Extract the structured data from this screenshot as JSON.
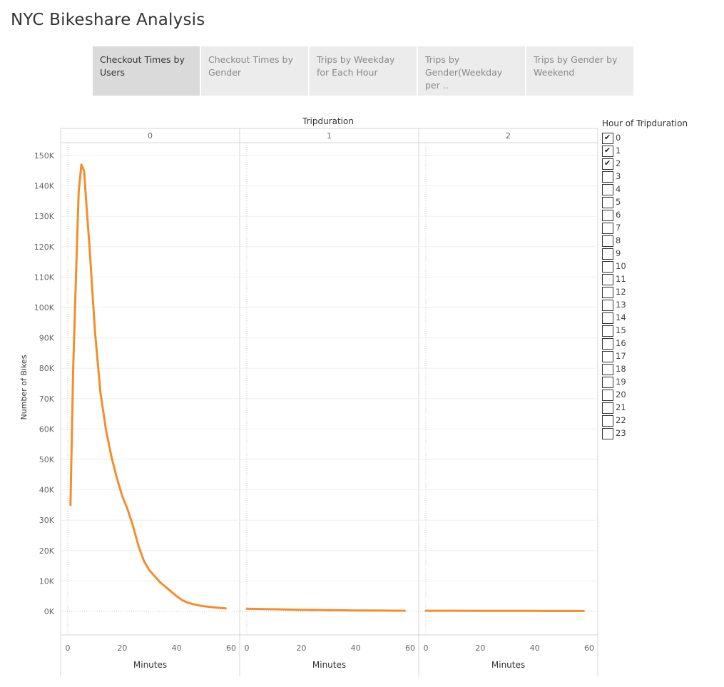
{
  "page": {
    "title": "NYC Bikeshare Analysis"
  },
  "tabs": [
    {
      "label": "Checkout Times by Users",
      "active": true
    },
    {
      "label": "Checkout Times by Gender",
      "active": false
    },
    {
      "label": "Trips by Weekday for Each Hour",
      "active": false
    },
    {
      "label": "Trips by Gender(Weekday per ..",
      "active": false
    },
    {
      "label": "Trips by Gender by Weekend",
      "active": false
    }
  ],
  "legend": {
    "title": "Hour of Tripduration",
    "items": [
      {
        "label": "0",
        "checked": true
      },
      {
        "label": "1",
        "checked": true
      },
      {
        "label": "2",
        "checked": true
      },
      {
        "label": "3",
        "checked": false
      },
      {
        "label": "4",
        "checked": false
      },
      {
        "label": "5",
        "checked": false
      },
      {
        "label": "6",
        "checked": false
      },
      {
        "label": "7",
        "checked": false
      },
      {
        "label": "8",
        "checked": false
      },
      {
        "label": "9",
        "checked": false
      },
      {
        "label": "10",
        "checked": false
      },
      {
        "label": "11",
        "checked": false
      },
      {
        "label": "12",
        "checked": false
      },
      {
        "label": "13",
        "checked": false
      },
      {
        "label": "14",
        "checked": false
      },
      {
        "label": "15",
        "checked": false
      },
      {
        "label": "16",
        "checked": false
      },
      {
        "label": "17",
        "checked": false
      },
      {
        "label": "18",
        "checked": false
      },
      {
        "label": "19",
        "checked": false
      },
      {
        "label": "20",
        "checked": false
      },
      {
        "label": "21",
        "checked": false
      },
      {
        "label": "22",
        "checked": false
      },
      {
        "label": "23",
        "checked": false
      }
    ]
  },
  "chart_data": {
    "type": "line",
    "title": "Tripduration",
    "xlabel": "Minutes",
    "ylabel": "Number of Bikes",
    "ylim": [
      0,
      150000
    ],
    "xlim": [
      0,
      60
    ],
    "x_ticks": [
      "0",
      "20",
      "40",
      "60"
    ],
    "y_ticks": [
      "0K",
      "10K",
      "20K",
      "30K",
      "40K",
      "50K",
      "60K",
      "70K",
      "80K",
      "90K",
      "100K",
      "110K",
      "120K",
      "130K",
      "140K",
      "150K"
    ],
    "grid": true,
    "line_color": "#f28e2b",
    "panels": [
      {
        "label": "0",
        "x": [
          1,
          2,
          3,
          4,
          5,
          6,
          7,
          8,
          9,
          10,
          12,
          14,
          16,
          18,
          20,
          22,
          24,
          26,
          28,
          30,
          32,
          34,
          36,
          38,
          40,
          42,
          44,
          46,
          48,
          50,
          52,
          54,
          56,
          58
        ],
        "values": [
          35000,
          80000,
          110000,
          138000,
          147000,
          145000,
          132000,
          120000,
          106000,
          92000,
          72000,
          60000,
          51000,
          44000,
          38000,
          33500,
          28000,
          21500,
          16500,
          13500,
          11500,
          9500,
          8000,
          6500,
          5000,
          3700,
          2900,
          2400,
          2000,
          1700,
          1500,
          1300,
          1100,
          1000
        ]
      },
      {
        "label": "1",
        "x": [
          0,
          10,
          20,
          30,
          40,
          50,
          58
        ],
        "values": [
          900,
          700,
          500,
          400,
          300,
          250,
          200
        ]
      },
      {
        "label": "2",
        "x": [
          0,
          10,
          20,
          30,
          40,
          50,
          58
        ],
        "values": [
          200,
          200,
          180,
          170,
          160,
          150,
          150
        ]
      }
    ]
  }
}
